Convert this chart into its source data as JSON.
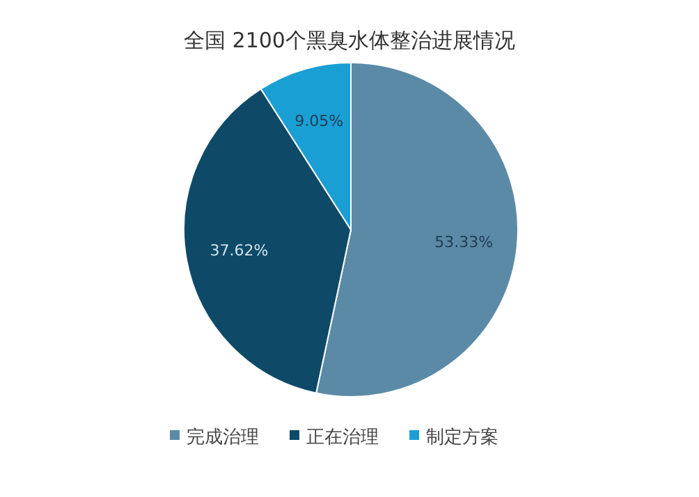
{
  "chart_data": {
    "type": "pie",
    "title": "全国 2100个黑臭水体整治进展情况",
    "categories": [
      "完成治理",
      "正在治理",
      "制定方案"
    ],
    "values": [
      53.33,
      37.62,
      9.05
    ],
    "colors": [
      "#5b8aa6",
      "#0e4a68",
      "#1a9fd4"
    ],
    "value_labels": [
      "53.33%",
      "37.62%",
      "9.05%"
    ],
    "legend": "bottom"
  }
}
